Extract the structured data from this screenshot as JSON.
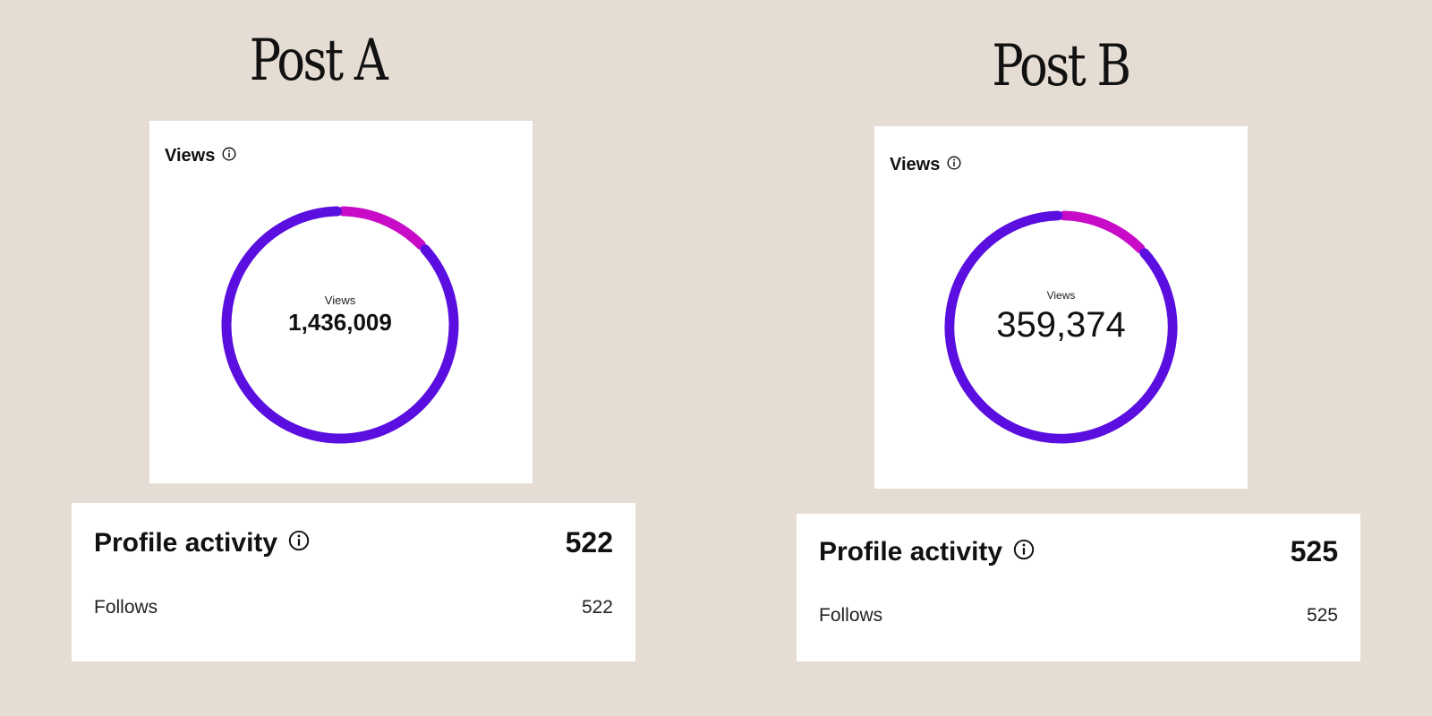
{
  "colors": {
    "background": "#e5dcd3",
    "primary_ring": "#5a0ee0",
    "secondary_ring": "#c70bc7"
  },
  "posts": [
    {
      "title": "Post A",
      "views_card": {
        "header": "Views",
        "icon": "info-icon",
        "center_label": "Views",
        "center_value": "1,436,009",
        "magenta_share": 0.13
      },
      "activity": {
        "title": "Profile activity",
        "icon": "info-icon",
        "total": "522",
        "rows": [
          {
            "label": "Follows",
            "value": "522"
          }
        ]
      }
    },
    {
      "title": "Post B",
      "views_card": {
        "header": "Views",
        "icon": "info-icon",
        "center_label": "Views",
        "center_value": "359,374",
        "magenta_share": 0.13
      },
      "activity": {
        "title": "Profile activity",
        "icon": "info-icon",
        "total": "525",
        "rows": [
          {
            "label": "Follows",
            "value": "525"
          }
        ]
      }
    }
  ]
}
